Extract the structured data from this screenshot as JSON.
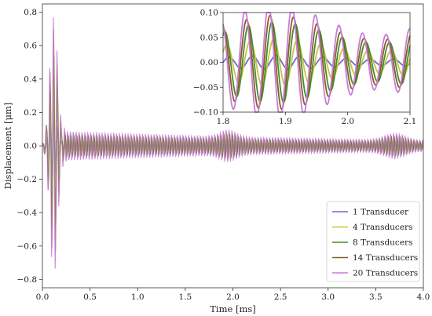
{
  "chart_data": {
    "type": "line",
    "xlabel": "Time [ms]",
    "ylabel": "Displacement [μm]",
    "xlim": [
      0.0,
      4.0
    ],
    "ylim": [
      -0.85,
      0.85
    ],
    "x_ticks": [
      "0.0",
      "0.5",
      "1.0",
      "1.5",
      "2.0",
      "2.5",
      "3.0",
      "3.5",
      "4.0"
    ],
    "y_ticks": [
      "0.8",
      "0.6",
      "0.4",
      "0.2",
      "0.0",
      "−0.2",
      "−0.4",
      "−0.6",
      "−0.8"
    ],
    "legend_position": "bottom-right",
    "series": [
      {
        "name": "1 Transducer",
        "color": "#6b6bd6",
        "amplitude": 0.01,
        "peak": 0.2
      },
      {
        "name": "4 Transducers",
        "color": "#c8c43a",
        "amplitude": 0.035,
        "peak": 0.45
      },
      {
        "name": "8 Transducers",
        "color": "#3f8f2a",
        "amplitude": 0.06,
        "peak": 0.55
      },
      {
        "name": "14 Transducers",
        "color": "#8b5a2b",
        "amplitude": 0.07,
        "peak": 0.7
      },
      {
        "name": "20 Transducers",
        "color": "#c77dd6",
        "amplitude": 0.085,
        "peak": 0.78
      }
    ],
    "inset": {
      "xlim": [
        1.8,
        2.1
      ],
      "ylim": [
        -0.1,
        0.1
      ],
      "x_ticks": [
        "1.8",
        "1.9",
        "2.0",
        "2.1"
      ],
      "y_ticks": [
        "0.10",
        "0.05",
        "0.00",
        "−0.05",
        "−0.10"
      ]
    }
  }
}
